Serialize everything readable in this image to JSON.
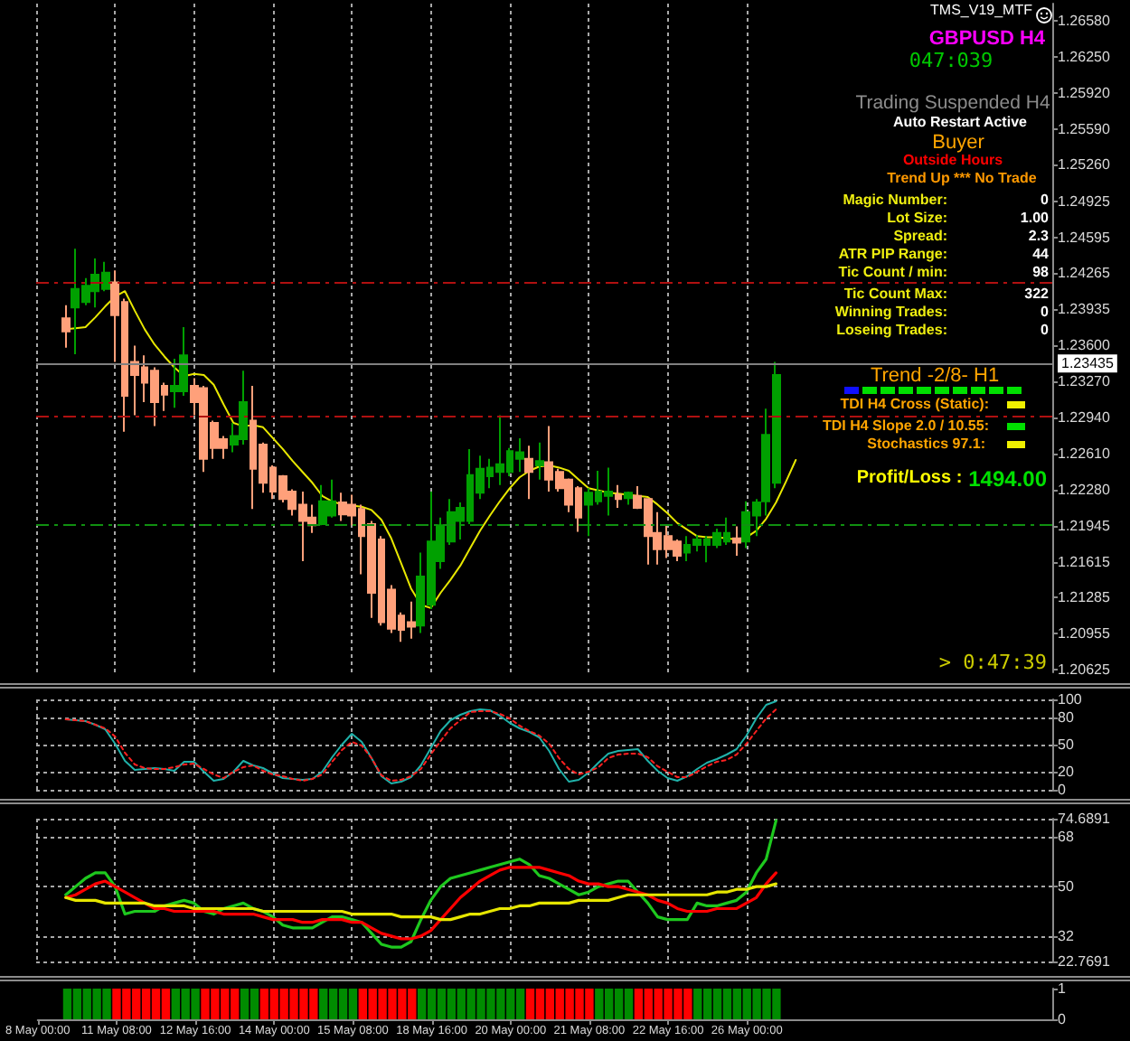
{
  "chart_data": [
    {
      "type": "candlestick",
      "title": "GBPUSD H4",
      "annotations": [
        "TMS_V19_MTF",
        "047:039",
        "Trading Suspended H4",
        "Auto Restart Active",
        "Buyer",
        "Outside Hours",
        "Trend Up *** No Trade",
        "Magic Number:",
        "0",
        "Lot Size:",
        "1.00",
        "Spread:",
        "2.3",
        "ATR PIP Range:",
        "44",
        "Tic Count / min:",
        "98",
        "Tic Count Max:",
        "322",
        "Winning Trades:",
        "0",
        "Loseing Trades:",
        "0",
        "Trend -2/8- H1",
        "TDI H4 Cross (Static):",
        "TDI H4 Slope 2.0 / 10.55:",
        "Stochastics 97.1:",
        "Profit/Loss :",
        "1494.00",
        "> 0:47:39"
      ],
      "categories": [
        null,
        null,
        null,
        null,
        null,
        null,
        null,
        null,
        null,
        null,
        null,
        null,
        null,
        null,
        null,
        null,
        null,
        null,
        null,
        null,
        null,
        null,
        null,
        null,
        null,
        null,
        null,
        null,
        null,
        null,
        null,
        null,
        null,
        null,
        null,
        null,
        null,
        null,
        null,
        null,
        null,
        null,
        null,
        null,
        null,
        null,
        null,
        null,
        null,
        null,
        null,
        null,
        null,
        null,
        null,
        null,
        null,
        null,
        null,
        null,
        null,
        null,
        null,
        null,
        null,
        null,
        null,
        null,
        null,
        null,
        null,
        null,
        null,
        null,
        null,
        null,
        null,
        null,
        null,
        null,
        null,
        null,
        null,
        null,
        null,
        null,
        null,
        null,
        null,
        null,
        null,
        null,
        null,
        null,
        null,
        null,
        null,
        null,
        null,
        null,
        null,
        null,
        null,
        null
      ],
      "ohlc": [
        null,
        null,
        null,
        [
          1.2385,
          1.2397,
          1.2358,
          1.2373
        ],
        [
          1.2395,
          1.2449,
          1.2352,
          1.2412
        ],
        [
          1.24,
          1.2422,
          1.2397,
          1.2415
        ],
        [
          1.241,
          1.244,
          1.2395,
          1.2425
        ],
        [
          1.2412,
          1.2437,
          1.241,
          1.2427
        ],
        [
          1.2418,
          1.2429,
          1.2345,
          1.2388
        ],
        [
          1.24,
          1.2403,
          1.2281,
          1.2314
        ],
        [
          1.2345,
          1.236,
          1.2296,
          1.2333
        ],
        [
          1.234,
          1.2351,
          1.2308,
          1.2326
        ],
        [
          1.2337,
          1.234,
          1.2286,
          1.2308
        ],
        [
          1.2323,
          1.2326,
          1.23,
          1.2315
        ],
        [
          1.2318,
          1.2348,
          1.2303,
          1.2323
        ],
        [
          1.2318,
          1.2377,
          1.2314,
          1.2351
        ],
        [
          1.2323,
          1.233,
          1.2296,
          1.2308
        ],
        [
          1.2321,
          1.2323,
          1.2244,
          1.2256
        ],
        [
          1.2289,
          1.2291,
          1.2256,
          1.2266
        ],
        [
          1.2274,
          1.2277,
          1.2256,
          1.2266
        ],
        [
          1.2269,
          1.2289,
          1.2262,
          1.2277
        ],
        [
          1.2274,
          1.2337,
          1.2269,
          1.2308
        ],
        [
          1.2291,
          1.2323,
          1.221,
          1.2247
        ],
        [
          1.2269,
          1.2271,
          1.2225,
          1.2234
        ],
        [
          1.2248,
          1.225,
          1.2219,
          1.2226
        ],
        [
          1.224,
          1.2241,
          1.2216,
          1.2219
        ],
        [
          1.2226,
          1.2228,
          1.2204,
          1.221
        ],
        [
          1.2214,
          1.2226,
          1.2162,
          1.2199
        ],
        [
          1.2202,
          1.2214,
          1.2188,
          1.2195
        ],
        [
          1.2196,
          1.2232,
          1.2195,
          1.2217
        ],
        [
          1.2204,
          1.2237,
          1.2202,
          1.2217
        ],
        [
          1.2216,
          1.2225,
          1.2199,
          1.2205
        ],
        [
          1.2214,
          1.2223,
          1.2195,
          1.2204
        ],
        [
          1.221,
          1.2214,
          1.215,
          1.2185
        ],
        [
          1.2196,
          1.2199,
          1.211,
          1.2133
        ],
        [
          1.2182,
          1.2185,
          1.2103,
          1.2106
        ],
        [
          1.2136,
          1.214,
          1.2096,
          1.21
        ],
        [
          1.2112,
          1.2115,
          1.2088,
          1.2099
        ],
        [
          1.2106,
          1.2125,
          1.2091,
          1.2102
        ],
        [
          1.2103,
          1.217,
          1.2096,
          1.2148
        ],
        [
          1.2122,
          1.2226,
          1.2118,
          1.218
        ],
        [
          1.2162,
          1.2202,
          1.2155,
          1.2195
        ],
        [
          1.218,
          1.2219,
          1.2177,
          1.2207
        ],
        [
          1.2199,
          1.2216,
          1.2182,
          1.2211
        ],
        [
          1.2199,
          1.2265,
          1.2196,
          1.2241
        ],
        [
          1.2225,
          1.2259,
          1.2219,
          1.2247
        ],
        [
          1.224,
          1.2256,
          1.2229,
          1.2248
        ],
        [
          1.2244,
          1.2296,
          1.2232,
          1.2251
        ],
        [
          1.2244,
          1.2266,
          1.224,
          1.2263
        ],
        [
          1.2256,
          1.2275,
          1.2244,
          1.2262
        ],
        [
          1.2256,
          1.2268,
          1.2219,
          1.2244
        ],
        [
          1.225,
          1.2271,
          1.2237,
          1.2254
        ],
        [
          1.2253,
          1.2286,
          1.2226,
          1.2237
        ],
        [
          1.2244,
          1.2247,
          1.2226,
          1.2229
        ],
        [
          1.2237,
          1.2238,
          1.2207,
          1.2214
        ],
        [
          1.2229,
          1.2231,
          1.2189,
          1.2202
        ],
        [
          1.2214,
          1.2229,
          1.2185,
          1.2225
        ],
        [
          1.2217,
          1.2245,
          1.2214,
          1.2226
        ],
        [
          1.2222,
          1.2248,
          1.2204,
          1.2226
        ],
        [
          1.2223,
          1.2232,
          1.2211,
          1.2219
        ],
        [
          1.222,
          1.2226,
          1.2214,
          1.2225
        ],
        [
          1.2222,
          1.2231,
          1.221,
          1.2211
        ],
        [
          1.2219,
          1.222,
          1.2159,
          1.2185
        ],
        [
          1.2188,
          1.2207,
          1.2159,
          1.2173
        ],
        [
          1.2185,
          1.2195,
          1.2165,
          1.2173
        ],
        [
          1.218,
          1.2182,
          1.2162,
          1.2167
        ],
        [
          1.217,
          1.2185,
          1.2162,
          1.2177
        ],
        [
          1.2177,
          1.2186,
          1.2171,
          1.2182
        ],
        [
          1.2177,
          1.2185,
          1.2161,
          1.2182
        ],
        [
          1.2177,
          1.2192,
          1.2174,
          1.2188
        ],
        [
          1.218,
          1.2202,
          1.2177,
          1.2188
        ],
        [
          1.2183,
          1.2194,
          1.2167,
          1.2179
        ],
        [
          1.218,
          1.2217,
          1.2174,
          1.2207
        ],
        [
          1.2204,
          1.2219,
          1.2185,
          1.2216
        ],
        [
          1.2217,
          1.2302,
          1.2204,
          1.2278
        ],
        [
          1.2234,
          1.2345,
          1.2229,
          1.2333
        ],
        null,
        null,
        null,
        null,
        null,
        null,
        null,
        null,
        null,
        null,
        null,
        null,
        null,
        null,
        null,
        null,
        null,
        null,
        null,
        null,
        null,
        null,
        null,
        null,
        null,
        null,
        null,
        null
      ],
      "colors": [
        null,
        null,
        null,
        "#ffa07a",
        "#00a000",
        "#00a000",
        "#00a000",
        "#00a000",
        "#ffa07a",
        "#ffa07a",
        "#ffa07a",
        "#ffa07a",
        "#ffa07a",
        "#ffa07a",
        "#00a000",
        "#00a000",
        "#ffa07a",
        "#ffa07a",
        "#ffa07a",
        "#ffa07a",
        "#00a000",
        "#00a000",
        "#ffa07a",
        "#ffa07a",
        "#ffa07a",
        "#ffa07a",
        "#ffa07a",
        "#ffa07a",
        "#ffa07a",
        "#00a000",
        "#00a000",
        "#ffa07a",
        "#ffa07a",
        "#ffa07a",
        "#ffa07a",
        "#ffa07a",
        "#ffa07a",
        "#ffa07a",
        "#ffa07a",
        "#00a000",
        "#00a000",
        "#00a000",
        "#00a000",
        "#00a000",
        "#00a000",
        "#00a000",
        "#00a000",
        "#00a000",
        "#00a000",
        "#00a000",
        "#ffa07a",
        "#00a000",
        "#ffa07a",
        "#ffa07a",
        "#ffa07a",
        "#ffa07a",
        "#00a000",
        "#00a000",
        "#00a000",
        "#ffa07a",
        "#00a000",
        "#ffa07a",
        "#ffa07a",
        "#ffa07a",
        "#ffa07a",
        "#ffa07a",
        "#00a000",
        "#00a000",
        "#00a000",
        "#00a000",
        "#00a000",
        "#ffa07a",
        "#00a000",
        "#00a000",
        "#00a000",
        "#00a000",
        null,
        null,
        null,
        null,
        null,
        null,
        null,
        null,
        null,
        null,
        null,
        null,
        null,
        null,
        null,
        null,
        null,
        null,
        null,
        null,
        null,
        null,
        null,
        null,
        null,
        null,
        null,
        null
      ],
      "series": [
        {
          "type": "line",
          "color": "#e8e800",
          "values": [
            null,
            null,
            null,
            1.2375,
            1.2376,
            1.2377,
            1.2386,
            1.2396,
            1.2405,
            1.241,
            1.2392,
            1.2375,
            1.2361,
            1.235,
            1.234,
            1.2332,
            1.2334,
            1.2333,
            1.2324,
            1.2306,
            1.2289,
            1.2286,
            1.2287,
            1.2285,
            1.2275,
            1.2265,
            1.2254,
            1.2244,
            1.2234,
            1.2222,
            1.2217,
            1.2214,
            1.2213,
            1.2212,
            1.2209,
            1.22,
            1.2183,
            1.216,
            1.2137,
            1.2122,
            1.2119,
            1.2133,
            1.2145,
            1.2158,
            1.2174,
            1.219,
            1.2204,
            1.2217,
            1.2229,
            1.2239,
            1.2245,
            1.2249,
            1.225,
            1.2248,
            1.2245,
            1.2237,
            1.2229,
            1.2227,
            1.2225,
            1.2224,
            1.2223,
            1.2222,
            1.2221,
            1.2214,
            1.2206,
            1.2197,
            1.2191,
            1.2185,
            1.2184,
            1.2184,
            1.2183,
            1.2182,
            1.2184,
            1.219,
            1.2201,
            1.2216,
            1.2235,
            1.2255,
            null,
            null,
            null,
            null,
            null,
            null,
            null,
            null,
            null,
            null,
            null,
            null,
            null,
            null,
            null,
            null,
            null,
            null,
            null,
            null,
            null,
            null,
            null,
            null,
            null,
            null
          ]
        }
      ],
      "ylim": [
        1.206,
        1.2674
      ],
      "yticks": [
        {
          "value": 1.2658,
          "label": "1.26580"
        },
        {
          "value": 1.2625,
          "label": "1.26250"
        },
        {
          "value": 1.2592,
          "label": "1.25920"
        },
        {
          "value": 1.2559,
          "label": "1.25590"
        },
        {
          "value": 1.2526,
          "label": "1.25260"
        },
        1.24925,
        1.24595,
        1.24265,
        1.23935,
        {
          "value": 1.236,
          "label": "1.23600"
        },
        {
          "value": 1.2327,
          "label": "1.23270"
        },
        {
          "value": 1.2294,
          "label": "1.22940"
        },
        {
          "value": 1.2261,
          "label": "1.22610"
        },
        {
          "value": 1.2228,
          "label": "1.22280"
        },
        1.21945,
        1.21615,
        1.21285,
        1.20955,
        1.20625
      ],
      "ref_lines": [
        {
          "axis": "y",
          "value": 1.2418,
          "color": "#b01010",
          "line_style": "dashed"
        },
        {
          "axis": "y",
          "value": 1.23435,
          "label": "1.23435",
          "color": "#808080",
          "line_style": "solid"
        },
        {
          "axis": "y",
          "value": 1.2296,
          "color": "#b01010",
          "line_style": "dashed"
        },
        {
          "axis": "y",
          "value": 1.2195,
          "color": "#109010",
          "line_style": "dashed"
        }
      ],
      "grid": "x",
      "tick_labels": "y"
    },
    {
      "type": "line",
      "categories": [
        null,
        null,
        null,
        null,
        null,
        null,
        null,
        null,
        null,
        null,
        null,
        null,
        null,
        null,
        null,
        null,
        null,
        null,
        null,
        null,
        null,
        null,
        null,
        null,
        null,
        null,
        null,
        null,
        null,
        null,
        null,
        null,
        null,
        null,
        null,
        null,
        null,
        null,
        null,
        null,
        null,
        null,
        null,
        null,
        null,
        null,
        null,
        null,
        null,
        null,
        null,
        null,
        null,
        null,
        null,
        null,
        null,
        null,
        null,
        null,
        null,
        null,
        null,
        null,
        null,
        null,
        null,
        null,
        null,
        null,
        null,
        null,
        null,
        null,
        null,
        null,
        null,
        null,
        null,
        null,
        null,
        null,
        null,
        null,
        null,
        null,
        null,
        null,
        null,
        null,
        null,
        null,
        null,
        null,
        null,
        null,
        null,
        null,
        null,
        null,
        null,
        null,
        null,
        null
      ],
      "series": [
        {
          "color": "#20b2aa",
          "line_style": "solid",
          "values": [
            null,
            null,
            null,
            78,
            77,
            76,
            72,
            67,
            51,
            32,
            22,
            23,
            24,
            23,
            21,
            31,
            31,
            20,
            10,
            12,
            20,
            32,
            27,
            24,
            18,
            13,
            12,
            11,
            12,
            20,
            36,
            50,
            62,
            53,
            35,
            15,
            7,
            9,
            14,
            27,
            46,
            65,
            77,
            83,
            87,
            89,
            88,
            82,
            74,
            68,
            64,
            58,
            43,
            23,
            9,
            11,
            19,
            30,
            40,
            43,
            44,
            45,
            32,
            21,
            13,
            10,
            15,
            23,
            30,
            34,
            39,
            45,
            60,
            79,
            94,
            98,
            null,
            null,
            null,
            null,
            null,
            null,
            null,
            null,
            null,
            null,
            null,
            null,
            null,
            null,
            null,
            null,
            null,
            null,
            null,
            null,
            null,
            null,
            null,
            null,
            null,
            null,
            null,
            null
          ]
        },
        {
          "color": "#ff2020",
          "line_style": "dotted",
          "values": [
            null,
            null,
            null,
            78,
            77,
            76,
            72,
            68,
            59,
            41,
            28,
            24,
            23,
            23,
            25,
            28,
            29,
            23,
            17,
            13,
            20,
            25,
            27,
            21,
            17,
            15,
            12,
            10,
            12,
            17,
            31,
            44,
            53,
            49,
            35,
            16,
            10,
            11,
            15,
            23,
            39,
            54,
            68,
            77,
            86,
            87,
            87,
            84,
            79,
            71,
            65,
            60,
            51,
            35,
            23,
            17,
            20,
            25,
            35,
            39,
            40,
            40,
            36,
            26,
            20,
            14,
            14,
            20,
            26,
            31,
            33,
            39,
            51,
            65,
            79,
            89,
            null,
            null,
            null,
            null,
            null,
            null,
            null,
            null,
            null,
            null,
            null,
            null,
            null,
            null,
            null,
            null,
            null,
            null,
            null,
            null,
            null,
            null,
            null,
            null,
            null,
            null,
            null,
            null
          ]
        }
      ],
      "ylim": [
        0,
        100
      ],
      "yticks": [
        100,
        80,
        50,
        20,
        0
      ],
      "grid": true,
      "tick_labels": "y"
    },
    {
      "type": "line",
      "categories": [
        null,
        null,
        null,
        null,
        null,
        null,
        null,
        null,
        null,
        null,
        null,
        null,
        null,
        null,
        null,
        null,
        null,
        null,
        null,
        null,
        null,
        null,
        null,
        null,
        null,
        null,
        null,
        null,
        null,
        null,
        null,
        null,
        null,
        null,
        null,
        null,
        null,
        null,
        null,
        null,
        null,
        null,
        null,
        null,
        null,
        null,
        null,
        null,
        null,
        null,
        null,
        null,
        null,
        null,
        null,
        null,
        null,
        null,
        null,
        null,
        null,
        null,
        null,
        null,
        null,
        null,
        null,
        null,
        null,
        null,
        null,
        null,
        null,
        null,
        null,
        null,
        null,
        null,
        null,
        null,
        null,
        null,
        null,
        null,
        null,
        null,
        null,
        null,
        null,
        null,
        null,
        null,
        null,
        null,
        null,
        null,
        null,
        null,
        null,
        null,
        null,
        null,
        null,
        null
      ],
      "series": [
        {
          "color": "#1ec81e",
          "values": [
            null,
            null,
            null,
            47,
            50,
            53,
            55,
            55,
            50,
            40,
            41,
            41,
            41,
            43,
            44,
            45,
            44,
            41,
            40,
            42,
            43,
            44,
            42,
            41,
            39,
            36,
            35,
            35,
            35,
            37,
            39,
            39,
            38,
            37,
            33,
            29,
            28,
            28,
            30,
            38,
            45,
            50,
            53,
            54,
            55,
            56,
            57,
            58,
            59,
            60,
            58,
            54,
            53,
            51,
            49,
            47,
            48,
            50,
            51,
            52,
            52,
            48,
            44,
            39,
            38,
            38,
            38,
            44,
            43,
            43,
            44,
            45,
            48,
            55,
            60,
            74,
            null,
            null,
            null,
            null,
            null,
            null,
            null,
            null,
            null,
            null,
            null,
            null,
            null,
            null,
            null,
            null,
            null,
            null,
            null,
            null,
            null,
            null,
            null,
            null,
            null,
            null,
            null,
            null
          ]
        },
        {
          "color": "#ff0000",
          "values": [
            null,
            null,
            null,
            46,
            47,
            49,
            51,
            52,
            50,
            48,
            46,
            44,
            42,
            42,
            41,
            41,
            41,
            41,
            41,
            40,
            40,
            40,
            40,
            39,
            38,
            38,
            38,
            37,
            37,
            38,
            38,
            38,
            37,
            37,
            35,
            33,
            32,
            31,
            31,
            32,
            34,
            38,
            42,
            46,
            49,
            52,
            54,
            56,
            57,
            57,
            57,
            57,
            56,
            55,
            54,
            52,
            51,
            51,
            50,
            50,
            49,
            48,
            47,
            45,
            44,
            42,
            41,
            41,
            41,
            42,
            42,
            42,
            44,
            46,
            51,
            55,
            null,
            null,
            null,
            null,
            null,
            null,
            null,
            null,
            null,
            null,
            null,
            null,
            null,
            null,
            null,
            null,
            null,
            null,
            null,
            null,
            null,
            null,
            null,
            null,
            null,
            null,
            null,
            null
          ]
        },
        {
          "color": "#e6e600",
          "values": [
            null,
            null,
            null,
            46,
            45,
            45,
            45,
            44,
            44,
            44,
            44,
            44,
            43,
            43,
            43,
            43,
            42,
            42,
            42,
            42,
            42,
            42,
            42,
            41,
            41,
            41,
            41,
            41,
            41,
            41,
            41,
            41,
            40,
            40,
            40,
            40,
            40,
            39,
            39,
            39,
            39,
            38,
            38,
            39,
            40,
            40,
            41,
            42,
            42,
            43,
            43,
            44,
            44,
            44,
            44,
            45,
            45,
            45,
            45,
            46,
            47,
            47,
            47,
            47,
            47,
            47,
            47,
            47,
            47,
            48,
            48,
            49,
            49,
            50,
            50,
            51,
            null,
            null,
            null,
            null,
            null,
            null,
            null,
            null,
            null,
            null,
            null,
            null,
            null,
            null,
            null,
            null,
            null,
            null,
            null,
            null,
            null,
            null,
            null,
            null,
            null,
            null,
            null,
            null
          ]
        }
      ],
      "ylim": [
        22.7691,
        74.6891
      ],
      "yticks": [
        74.6891,
        68,
        50,
        32,
        22.7691
      ],
      "grid": true,
      "tick_labels": "y"
    },
    {
      "type": "bar",
      "categories": [
        "8 May 00:00",
        null,
        null,
        null,
        null,
        null,
        null,
        null,
        "11 May 08:00",
        null,
        null,
        null,
        null,
        null,
        null,
        null,
        "12 May 16:00",
        null,
        null,
        null,
        null,
        null,
        null,
        null,
        "14 May 00:00",
        null,
        null,
        null,
        null,
        null,
        null,
        null,
        "15 May 08:00",
        null,
        null,
        null,
        null,
        null,
        null,
        null,
        "18 May 16:00",
        null,
        null,
        null,
        null,
        null,
        null,
        null,
        "20 May 00:00",
        null,
        null,
        null,
        null,
        null,
        null,
        null,
        "21 May 08:00",
        null,
        null,
        null,
        null,
        null,
        null,
        null,
        "22 May 16:00",
        null,
        null,
        null,
        null,
        null,
        null,
        null,
        "26 May 00:00",
        null,
        null,
        null,
        null,
        null,
        null,
        null,
        null,
        null,
        null,
        null,
        null,
        null,
        null,
        null,
        null,
        null,
        null,
        null,
        null,
        null,
        null,
        null,
        null,
        null,
        null,
        null,
        null,
        null,
        null,
        null
      ],
      "values": [
        null,
        null,
        null,
        1,
        1,
        1,
        1,
        1,
        1,
        1,
        1,
        1,
        1,
        1,
        1,
        1,
        1,
        1,
        1,
        1,
        1,
        1,
        1,
        1,
        1,
        1,
        1,
        1,
        1,
        1,
        1,
        1,
        1,
        1,
        1,
        1,
        1,
        1,
        1,
        1,
        1,
        1,
        1,
        1,
        1,
        1,
        1,
        1,
        1,
        1,
        1,
        1,
        1,
        1,
        1,
        1,
        1,
        1,
        1,
        1,
        1,
        1,
        1,
        1,
        1,
        1,
        1,
        1,
        1,
        1,
        1,
        1,
        1,
        1,
        1,
        1,
        null,
        null,
        null,
        null,
        null,
        null,
        null,
        null,
        null,
        null,
        null,
        null,
        null,
        null,
        null,
        null,
        null,
        null,
        null,
        null,
        null,
        null,
        null,
        null,
        null,
        null,
        null,
        null
      ],
      "colors": [
        null,
        null,
        null,
        "#008c00",
        "#008c00",
        "#008c00",
        "#008c00",
        "#008c00",
        "#ff0000",
        "#ff0000",
        "#ff0000",
        "#ff0000",
        "#ff0000",
        "#ff0000",
        "#008c00",
        "#008c00",
        "#008c00",
        "#ff0000",
        "#ff0000",
        "#ff0000",
        "#ff0000",
        "#008c00",
        "#008c00",
        "#ff0000",
        "#ff0000",
        "#ff0000",
        "#ff0000",
        "#ff0000",
        "#ff0000",
        "#008c00",
        "#008c00",
        "#008c00",
        "#008c00",
        "#ff0000",
        "#ff0000",
        "#ff0000",
        "#ff0000",
        "#ff0000",
        "#ff0000",
        "#008c00",
        "#008c00",
        "#008c00",
        "#008c00",
        "#008c00",
        "#008c00",
        "#008c00",
        "#008c00",
        "#008c00",
        "#008c00",
        "#008c00",
        "#ff0000",
        "#ff0000",
        "#ff0000",
        "#ff0000",
        "#ff0000",
        "#ff0000",
        "#ff0000",
        "#008c00",
        "#008c00",
        "#008c00",
        "#008c00",
        "#ff0000",
        "#ff0000",
        "#ff0000",
        "#ff0000",
        "#ff0000",
        "#ff0000",
        "#008c00",
        "#008c00",
        "#008c00",
        "#008c00",
        "#008c00",
        "#008c00",
        "#008c00",
        "#008c00",
        "#008c00",
        null,
        null,
        null,
        null,
        null,
        null,
        null,
        null,
        null,
        null,
        null,
        null,
        null,
        null,
        null,
        null,
        null,
        null,
        null,
        null,
        null,
        null,
        null,
        null,
        null,
        null,
        null,
        null
      ],
      "ylim": [
        0,
        1
      ],
      "yticks": [
        1,
        0
      ]
    }
  ]
}
